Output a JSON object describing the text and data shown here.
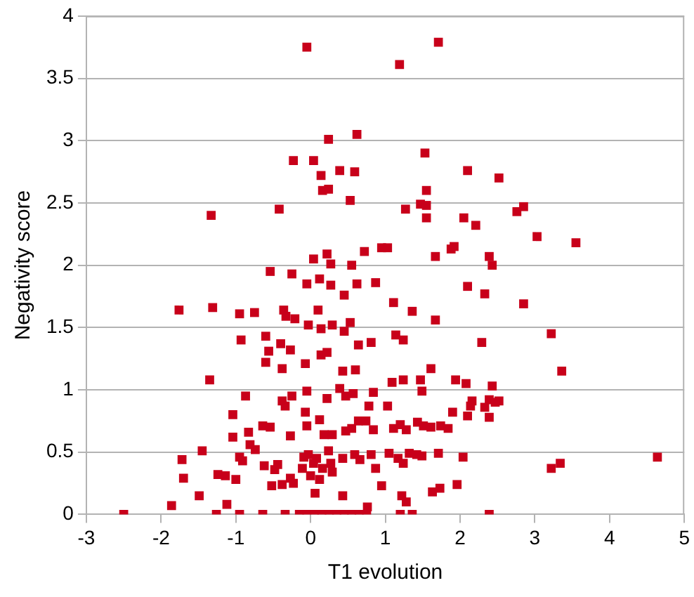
{
  "chart_data": {
    "type": "scatter",
    "xlabel": "T1 evolution",
    "ylabel": "Negativity score",
    "color": "#c8001a",
    "marker": "square",
    "grid": "y",
    "legend": false,
    "xlim": [
      -3,
      5
    ],
    "xticks": [
      -3,
      -2,
      -1,
      0,
      1,
      2,
      3,
      4,
      5
    ],
    "ylim": [
      0,
      4
    ],
    "yticks": [
      0,
      0.5,
      1,
      1.5,
      2,
      2.5,
      3,
      3.5,
      4
    ],
    "x": [
      -0.05,
      1.71,
      1.19,
      0.62,
      0.24,
      -0.23,
      0.04,
      0.59,
      1.53,
      2.1,
      2.52,
      0.14,
      0.39,
      0.16,
      0.24,
      0.53,
      -0.42,
      -1.33,
      1.27,
      1.47,
      1.55,
      1.55,
      1.55,
      2.05,
      2.21,
      2.85,
      2.76,
      3.03,
      3.55,
      0.04,
      0.22,
      0.27,
      0.72,
      0.95,
      1.03,
      1.67,
      1.88,
      1.92,
      2.39,
      2.43,
      -0.54,
      -0.25,
      -0.05,
      0.12,
      0.27,
      0.55,
      0.45,
      0.62,
      0.87,
      -1.76,
      -1.31,
      -0.95,
      -0.75,
      -0.36,
      0.1,
      -0.33,
      -0.21,
      -0.03,
      0.14,
      0.29,
      0.45,
      0.53,
      1.11,
      1.36,
      2.1,
      2.33,
      2.85,
      1.67,
      1.14,
      1.24,
      2.29,
      3.22,
      3.36,
      -0.93,
      -0.6,
      -0.56,
      -0.4,
      -0.27,
      0.14,
      0.22,
      -0.07,
      -0.38,
      -0.6,
      0.43,
      0.6,
      0.64,
      0.81,
      -1.35,
      -0.25,
      -0.05,
      0.22,
      0.39,
      0.57,
      0.84,
      1.09,
      1.24,
      1.47,
      1.49,
      1.61,
      1.94,
      2.08,
      2.16,
      2.39,
      2.43,
      2.52,
      -0.87,
      -1.04,
      -0.38,
      -0.34,
      -0.64,
      -0.07,
      -0.83,
      -1.04,
      -1.45,
      -0.81,
      -0.74,
      -0.54,
      -0.27,
      -0.05,
      0.12,
      0.18,
      0.29,
      0.47,
      0.55,
      0.64,
      0.74,
      0.84,
      1.11,
      1.2,
      1.28,
      1.43,
      1.51,
      1.61,
      1.74,
      1.84,
      1.9,
      2.1,
      2.14,
      2.33,
      2.39,
      2.47,
      0.78,
      0.47,
      1.03,
      -1.72,
      -1.7,
      -1.24,
      -1.14,
      -1.0,
      -0.95,
      -0.91,
      -0.62,
      -0.48,
      -0.44,
      -0.52,
      -0.38,
      -0.27,
      -0.23,
      -0.11,
      -0.09,
      -0.03,
      0.08,
      0.04,
      0.16,
      0.27,
      0.29,
      0.24,
      0.0,
      0.12,
      0.43,
      0.59,
      0.66,
      0.81,
      0.87,
      1.05,
      1.17,
      1.24,
      1.32,
      1.42,
      1.49,
      1.71,
      2.04,
      1.96,
      1.73,
      1.63,
      1.22,
      1.28,
      0.76,
      0.95,
      0.43,
      0.06,
      -1.12,
      -1.49,
      -1.86,
      -2.5,
      -1.26,
      -0.95,
      -0.64,
      -0.34,
      -0.15,
      -0.05,
      0.05,
      0.15,
      0.25,
      0.35,
      0.45,
      0.55,
      0.65,
      0.75,
      1.2,
      1.36,
      2.39,
      3.22,
      3.34,
      4.64
    ],
    "values": [
      3.75,
      3.79,
      3.61,
      3.05,
      3.01,
      2.84,
      2.84,
      2.75,
      2.9,
      2.76,
      2.7,
      2.72,
      2.76,
      2.6,
      2.61,
      2.52,
      2.45,
      2.4,
      2.45,
      2.49,
      2.6,
      2.48,
      2.38,
      2.38,
      2.32,
      2.47,
      2.43,
      2.23,
      2.18,
      2.05,
      2.09,
      2.01,
      2.11,
      2.14,
      2.14,
      2.07,
      2.13,
      2.15,
      2.07,
      2.0,
      1.95,
      1.93,
      1.85,
      1.89,
      1.84,
      2.0,
      1.76,
      1.85,
      1.86,
      1.64,
      1.66,
      1.61,
      1.62,
      1.64,
      1.64,
      1.59,
      1.57,
      1.52,
      1.49,
      1.52,
      1.47,
      1.54,
      1.7,
      1.63,
      1.83,
      1.77,
      1.69,
      1.56,
      1.44,
      1.4,
      1.38,
      1.45,
      1.15,
      1.4,
      1.43,
      1.31,
      1.37,
      1.32,
      1.28,
      1.3,
      1.21,
      1.17,
      1.22,
      1.15,
      1.16,
      1.36,
      1.38,
      1.08,
      0.95,
      0.99,
      0.93,
      1.01,
      0.97,
      0.98,
      1.06,
      1.08,
      1.08,
      0.99,
      1.17,
      1.08,
      1.05,
      0.91,
      0.92,
      1.03,
      0.91,
      0.95,
      0.8,
      0.91,
      0.87,
      0.71,
      0.82,
      0.66,
      0.62,
      0.51,
      0.56,
      0.52,
      0.7,
      0.63,
      0.71,
      0.76,
      0.64,
      0.64,
      0.67,
      0.69,
      0.75,
      0.75,
      0.68,
      0.69,
      0.72,
      0.68,
      0.74,
      0.71,
      0.7,
      0.71,
      0.69,
      0.82,
      0.79,
      0.87,
      0.86,
      0.78,
      0.9,
      0.87,
      0.95,
      0.87,
      0.44,
      0.29,
      0.32,
      0.31,
      0.28,
      0.46,
      0.43,
      0.39,
      0.36,
      0.4,
      0.23,
      0.24,
      0.29,
      0.25,
      0.37,
      0.46,
      0.48,
      0.45,
      0.41,
      0.37,
      0.41,
      0.34,
      0.51,
      0.31,
      0.28,
      0.45,
      0.48,
      0.44,
      0.48,
      0.37,
      0.49,
      0.45,
      0.41,
      0.49,
      0.48,
      0.47,
      0.49,
      0.46,
      0.24,
      0.21,
      0.18,
      0.15,
      0.1,
      0.06,
      0.23,
      0.15,
      0.17,
      0.08,
      0.15,
      0.07,
      0,
      0,
      0,
      0,
      0,
      0,
      0,
      0,
      0,
      0,
      0,
      0,
      0,
      0,
      0,
      0,
      0,
      0,
      0.37,
      0.41,
      0.46
    ]
  }
}
